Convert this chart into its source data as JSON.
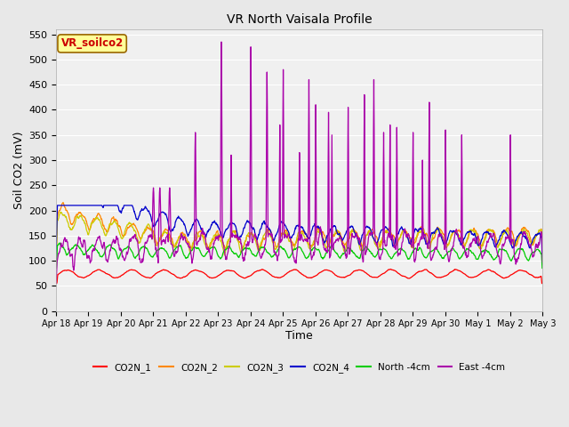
{
  "title": "VR North Vaisala Profile",
  "xlabel": "Time",
  "ylabel": "Soil CO2 (mV)",
  "ylim": [
    0,
    560
  ],
  "yticks": [
    0,
    50,
    100,
    150,
    200,
    250,
    300,
    350,
    400,
    450,
    500,
    550
  ],
  "annotation": "VR_soilco2",
  "annotation_color": "#cc0000",
  "annotation_bg": "#ffff99",
  "annotation_border": "#996600",
  "background_color": "#e8e8e8",
  "plot_bg": "#f0f0f0",
  "xtick_labels": [
    "Apr 18",
    "Apr 19",
    "Apr 20",
    "Apr 21",
    "Apr 22",
    "Apr 23",
    "Apr 24",
    "Apr 25",
    "Apr 26",
    "Apr 27",
    "Apr 28",
    "Apr 29",
    "Apr 30",
    "May 1",
    "May 2",
    "May 3"
  ],
  "series_colors": {
    "CO2N_1": "#ff0000",
    "CO2N_2": "#ff8800",
    "CO2N_3": "#cccc00",
    "CO2N_4": "#0000cc",
    "North_4cm": "#00cc00",
    "East_4cm": "#aa00aa"
  },
  "legend_labels": [
    "CO2N_1",
    "CO2N_2",
    "CO2N_3",
    "CO2N_4",
    "North -4cm",
    "East -4cm"
  ]
}
